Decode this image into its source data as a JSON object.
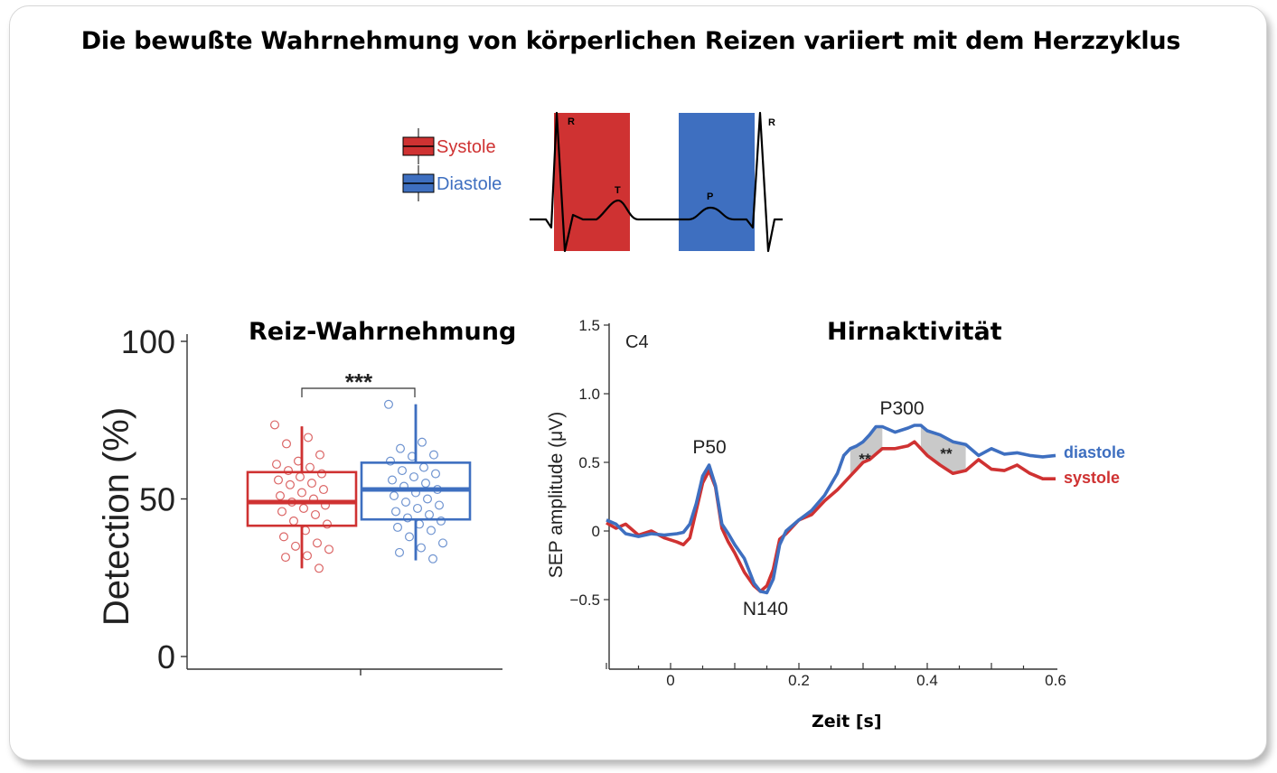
{
  "title": "Die bewußte Wahrnehmung von körperlichen Reizen variiert mit dem Herzzyklus",
  "colors": {
    "systole": "#cf3232",
    "diastole": "#3e6fc0",
    "sig_fill": "#c9c9c9"
  },
  "chart_data": [
    {
      "type": "diagram",
      "legend": [
        {
          "label": "Systole",
          "color": "#cf3232"
        },
        {
          "label": "Diastole",
          "color": "#3e6fc0"
        }
      ],
      "wave_labels": [
        "R",
        "T",
        "P",
        "R"
      ]
    },
    {
      "type": "boxplot",
      "title": "Reiz-Wahrnehmung",
      "ylabel": "Detection  (%)",
      "ylim": [
        0,
        100
      ],
      "yticks": [
        "0",
        "50",
        "100"
      ],
      "significance": "***",
      "series": [
        {
          "color": "#cf3232",
          "q1": 41.5,
          "median": 49,
          "q3": 58.5,
          "whisker_low": 28,
          "whisker_high": 73,
          "points": [
            73.5,
            69.5,
            67.5,
            64,
            62,
            61,
            60,
            59,
            58,
            57,
            56,
            55,
            54.5,
            53,
            52,
            51,
            50,
            49,
            48,
            47,
            46,
            45,
            43,
            42,
            40,
            38,
            36,
            35,
            34,
            32,
            31.5,
            28
          ]
        },
        {
          "color": "#3e6fc0",
          "q1": 43.5,
          "median": 53,
          "q3": 61.5,
          "whisker_low": 30.5,
          "whisker_high": 80,
          "points": [
            80,
            68,
            66,
            64,
            63.5,
            62,
            60,
            59,
            58,
            57,
            56,
            55,
            54,
            53,
            52,
            51,
            50,
            49,
            48,
            47,
            46,
            45,
            44,
            43,
            42,
            41,
            40,
            38,
            36,
            34.5,
            33,
            31
          ]
        }
      ]
    },
    {
      "type": "line",
      "title": "Hirnaktivität",
      "channel": "C4",
      "ylabel": "SEP amplitude (μV)",
      "xlabel": "Zeit [s]",
      "xlim": [
        -0.1,
        0.6
      ],
      "ylim": [
        -1.0,
        1.5
      ],
      "xticks": [
        "0",
        "0.2",
        "0.4",
        "0.6"
      ],
      "yticks": [
        "−0.5",
        "0",
        "0.5",
        "1.0",
        "1.5"
      ],
      "peak_labels": [
        "P50",
        "N140",
        "P300"
      ],
      "sig_labels": [
        "**",
        "**"
      ],
      "series": [
        {
          "name": "diastole",
          "color": "#3e6fc0",
          "x": [
            -0.1,
            -0.085,
            -0.07,
            -0.05,
            -0.03,
            -0.01,
            0.01,
            0.02,
            0.03,
            0.04,
            0.05,
            0.06,
            0.07,
            0.08,
            0.09,
            0.1,
            0.115,
            0.13,
            0.14,
            0.15,
            0.16,
            0.17,
            0.18,
            0.2,
            0.22,
            0.24,
            0.26,
            0.27,
            0.28,
            0.29,
            0.3,
            0.31,
            0.32,
            0.33,
            0.35,
            0.37,
            0.38,
            0.39,
            0.4,
            0.42,
            0.44,
            0.46,
            0.48,
            0.5,
            0.52,
            0.54,
            0.56,
            0.58,
            0.6
          ],
          "y": [
            0.08,
            0.05,
            -0.02,
            -0.04,
            -0.02,
            -0.03,
            -0.02,
            -0.01,
            0.05,
            0.2,
            0.4,
            0.48,
            0.33,
            0.05,
            -0.02,
            -0.1,
            -0.2,
            -0.38,
            -0.44,
            -0.45,
            -0.35,
            -0.1,
            0.0,
            0.08,
            0.15,
            0.26,
            0.42,
            0.55,
            0.6,
            0.62,
            0.65,
            0.7,
            0.76,
            0.76,
            0.72,
            0.75,
            0.77,
            0.77,
            0.73,
            0.7,
            0.65,
            0.63,
            0.55,
            0.6,
            0.56,
            0.57,
            0.55,
            0.54,
            0.55
          ]
        },
        {
          "name": "systole",
          "color": "#cf3232",
          "x": [
            -0.1,
            -0.085,
            -0.07,
            -0.05,
            -0.03,
            -0.01,
            0.01,
            0.02,
            0.03,
            0.04,
            0.05,
            0.06,
            0.07,
            0.08,
            0.09,
            0.1,
            0.115,
            0.13,
            0.14,
            0.15,
            0.16,
            0.17,
            0.18,
            0.2,
            0.22,
            0.24,
            0.26,
            0.27,
            0.28,
            0.29,
            0.3,
            0.31,
            0.32,
            0.33,
            0.35,
            0.37,
            0.38,
            0.39,
            0.4,
            0.42,
            0.44,
            0.46,
            0.48,
            0.5,
            0.52,
            0.54,
            0.56,
            0.58,
            0.6
          ],
          "y": [
            0.06,
            0.02,
            0.05,
            -0.03,
            0.0,
            -0.05,
            -0.08,
            -0.1,
            -0.05,
            0.15,
            0.35,
            0.44,
            0.32,
            0.02,
            -0.08,
            -0.16,
            -0.3,
            -0.4,
            -0.44,
            -0.4,
            -0.28,
            -0.06,
            -0.02,
            0.08,
            0.12,
            0.22,
            0.3,
            0.35,
            0.4,
            0.45,
            0.5,
            0.52,
            0.56,
            0.6,
            0.6,
            0.62,
            0.65,
            0.6,
            0.55,
            0.48,
            0.42,
            0.44,
            0.52,
            0.45,
            0.44,
            0.48,
            0.42,
            0.38,
            0.38
          ]
        }
      ]
    }
  ]
}
